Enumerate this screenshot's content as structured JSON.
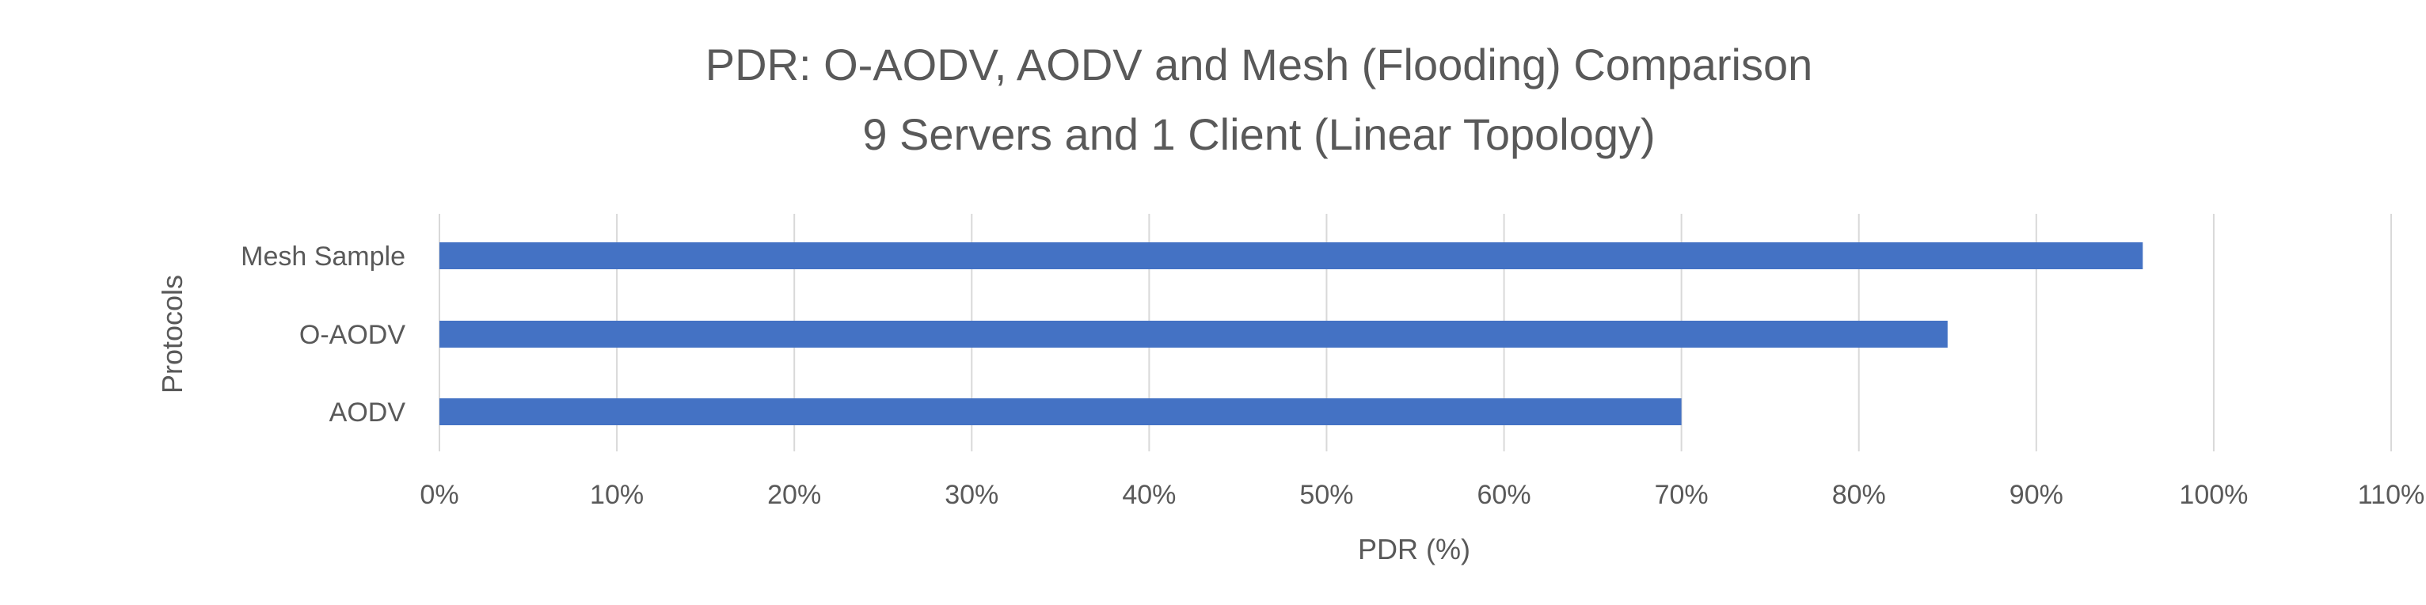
{
  "chart_data": {
    "type": "bar",
    "orientation": "horizontal",
    "title": [
      "PDR: O-AODV, AODV and Mesh (Flooding) Comparison",
      "9 Servers and 1 Client (Linear Topology)"
    ],
    "xlabel": "PDR (%)",
    "ylabel": "Protocols",
    "categories": [
      "AODV",
      "O-AODV",
      "Mesh Sample"
    ],
    "values": [
      70,
      85,
      96
    ],
    "xlim": [
      0,
      110
    ],
    "xticks": [
      "0%",
      "10%",
      "20%",
      "30%",
      "40%",
      "50%",
      "60%",
      "70%",
      "80%",
      "90%",
      "100%",
      "110%"
    ],
    "grid": true,
    "legend": "none",
    "bar_color": "#4472C4"
  }
}
